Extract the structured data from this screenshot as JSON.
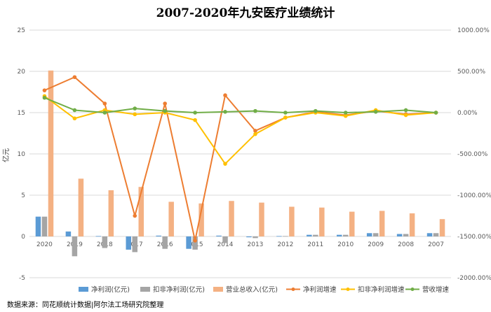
{
  "chart_data": {
    "type": "bar",
    "title": "2007-2020年九安医疗业绩统计",
    "ylabel": "亿元",
    "ylim": [
      -5,
      25
    ],
    "y_ticks": [
      "-5",
      "0",
      "5",
      "10",
      "15",
      "20",
      "25"
    ],
    "y2lim": [
      -2000,
      1000
    ],
    "y2_ticks": [
      "-2000.00%",
      "-1500.00%",
      "-1000.00%",
      "-500.00%",
      "0.00%",
      "500.00%",
      "1000.00%"
    ],
    "categories": [
      "2020",
      "2019",
      "2018",
      "2017",
      "2016",
      "2015",
      "2014",
      "2013",
      "2012",
      "2011",
      "2010",
      "2009",
      "2008",
      "2007"
    ],
    "bar_series": [
      {
        "name": "净利润(亿元)",
        "color": "#5b9bd5",
        "values": [
          2.4,
          0.6,
          0.05,
          -1.6,
          0.1,
          -1.5,
          0.1,
          -0.1,
          0.05,
          0.2,
          0.2,
          0.4,
          0.3,
          0.4
        ]
      },
      {
        "name": "扣非净利润(亿元)",
        "color": "#a5a5a5",
        "values": [
          2.4,
          -2.4,
          -1.4,
          -1.9,
          -1.5,
          -1.6,
          -0.8,
          -0.2,
          0.05,
          0.2,
          0.2,
          0.4,
          0.3,
          0.4
        ]
      },
      {
        "name": "营业总收入(亿元)",
        "color": "#f4b183",
        "values": [
          20.1,
          7.0,
          5.6,
          6.0,
          4.2,
          4.0,
          4.3,
          4.1,
          3.6,
          3.5,
          3.0,
          3.1,
          2.8,
          2.1
        ]
      }
    ],
    "line_series": [
      {
        "name": "净利润增速",
        "color": "#ed7d31",
        "values": [
          270,
          430,
          110,
          -1250,
          110,
          -1550,
          210,
          -220,
          -60,
          10,
          -30,
          20,
          -20,
          0
        ]
      },
      {
        "name": "扣非净利润增速",
        "color": "#ffc000",
        "values": [
          200,
          -70,
          30,
          -20,
          0,
          -90,
          -620,
          -260,
          -60,
          0,
          -40,
          30,
          -30,
          0
        ]
      },
      {
        "name": "营收增速",
        "color": "#70ad47",
        "values": [
          180,
          30,
          0,
          50,
          20,
          0,
          10,
          20,
          0,
          20,
          0,
          10,
          30,
          0
        ]
      }
    ]
  },
  "source": "数据来源：同花顺统计数据|阿尔法工场研究院整理"
}
